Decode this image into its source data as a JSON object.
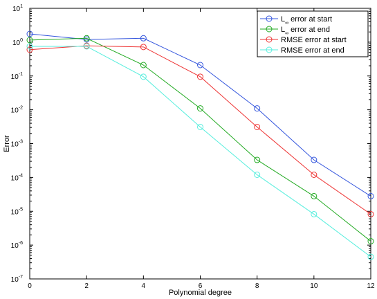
{
  "chart_data": {
    "type": "line",
    "xlabel": "Polynomial degree",
    "ylabel": "Error",
    "x_scale": "linear",
    "y_scale": "log",
    "xlim": [
      0,
      12
    ],
    "ylim": [
      1e-07,
      10
    ],
    "x_ticks": [
      0,
      2,
      4,
      6,
      8,
      10,
      12
    ],
    "y_tick_exponents": [
      -7,
      -6,
      -5,
      -4,
      -3,
      -2,
      -1,
      0,
      1
    ],
    "y_tick_base": "10",
    "grid": false,
    "legend_position": "top-right",
    "x": [
      0,
      2,
      4,
      6,
      8,
      10,
      12
    ],
    "series": [
      {
        "legend_prefix": "L",
        "legend_subscript": "∞",
        "legend_suffix": " error at start",
        "color": "#3355dd",
        "marker": "circle",
        "values": [
          1.75,
          1.2,
          1.3,
          0.21,
          0.011,
          0.00033,
          2.8e-05
        ]
      },
      {
        "legend_prefix": "L",
        "legend_subscript": "∞",
        "legend_suffix": " error at end",
        "color": "#22aa22",
        "marker": "circle",
        "values": [
          1.15,
          1.3,
          0.21,
          0.011,
          0.00033,
          2.8e-05,
          1.3e-06
        ]
      },
      {
        "legend_prefix": "RMSE error at start",
        "legend_subscript": "",
        "legend_suffix": "",
        "color": "#ee3333",
        "marker": "circle",
        "values": [
          0.6,
          0.78,
          0.72,
          0.095,
          0.0031,
          0.00012,
          8.2e-06
        ]
      },
      {
        "legend_prefix": "RMSE error at end",
        "legend_subscript": "",
        "legend_suffix": "",
        "color": "#55eedd",
        "marker": "circle",
        "values": [
          0.75,
          0.75,
          0.095,
          0.0031,
          0.00012,
          8.2e-06,
          4.5e-07
        ]
      }
    ]
  }
}
